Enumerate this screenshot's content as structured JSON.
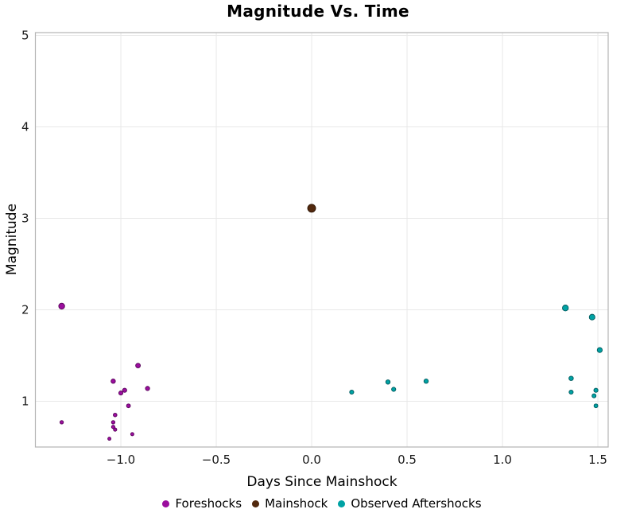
{
  "chart_data": {
    "type": "scatter",
    "title": "Magnitude Vs. Time",
    "xlabel": "Days Since Mainshock",
    "ylabel": "Magnitude",
    "xlim": [
      -1.448,
      1.554
    ],
    "ylim": [
      0.5,
      5.03
    ],
    "grid": "major gridlines only, light gray, white background, gray panel border",
    "legend_position": "bottom",
    "point_size_encodes": "magnitude",
    "x_ticks": {
      "values": [
        -1.0,
        -0.5,
        0.0,
        0.5,
        1.0,
        1.5
      ],
      "labels": [
        "−1.0",
        "−0.5",
        "0.0",
        "0.5",
        "1.0",
        "1.5"
      ]
    },
    "y_ticks": {
      "values": [
        1,
        2,
        3,
        4,
        5
      ],
      "labels": [
        "1",
        "2",
        "3",
        "4",
        "5"
      ]
    },
    "series": [
      {
        "id": "foreshocks",
        "name": "Foreshocks",
        "color": "#9B0E9E",
        "edge": "#570559",
        "points": [
          [
            -1.31,
            2.04
          ],
          [
            -1.31,
            0.77
          ],
          [
            -0.91,
            1.39
          ],
          [
            -1.04,
            1.22
          ],
          [
            -0.98,
            1.12
          ],
          [
            -1.0,
            1.09
          ],
          [
            -0.86,
            1.14
          ],
          [
            -0.96,
            0.95
          ],
          [
            -1.03,
            0.85
          ],
          [
            -1.04,
            0.77
          ],
          [
            -1.04,
            0.72
          ],
          [
            -1.03,
            0.69
          ],
          [
            -0.94,
            0.64
          ],
          [
            -1.06,
            0.59
          ]
        ]
      },
      {
        "id": "mainshock",
        "name": "Mainshock",
        "color": "#52290E",
        "edge": "#2E1605",
        "points": [
          [
            0.0,
            3.11
          ]
        ]
      },
      {
        "id": "aftershocks",
        "name": "Observed Aftershocks",
        "color": "#00A2A4",
        "edge": "#01595C",
        "points": [
          [
            0.21,
            1.1
          ],
          [
            0.4,
            1.21
          ],
          [
            0.43,
            1.13
          ],
          [
            0.6,
            1.22
          ],
          [
            1.33,
            2.02
          ],
          [
            1.47,
            1.92
          ],
          [
            1.51,
            1.56
          ],
          [
            1.36,
            1.25
          ],
          [
            1.36,
            1.1
          ],
          [
            1.49,
            1.12
          ],
          [
            1.48,
            1.06
          ],
          [
            1.49,
            0.95
          ]
        ]
      }
    ],
    "colors": {
      "background": "#ffffff",
      "gridline": "#e8e8e8",
      "panel_border": "#b4b4b4",
      "tick_text": "#1a1a1a"
    }
  }
}
